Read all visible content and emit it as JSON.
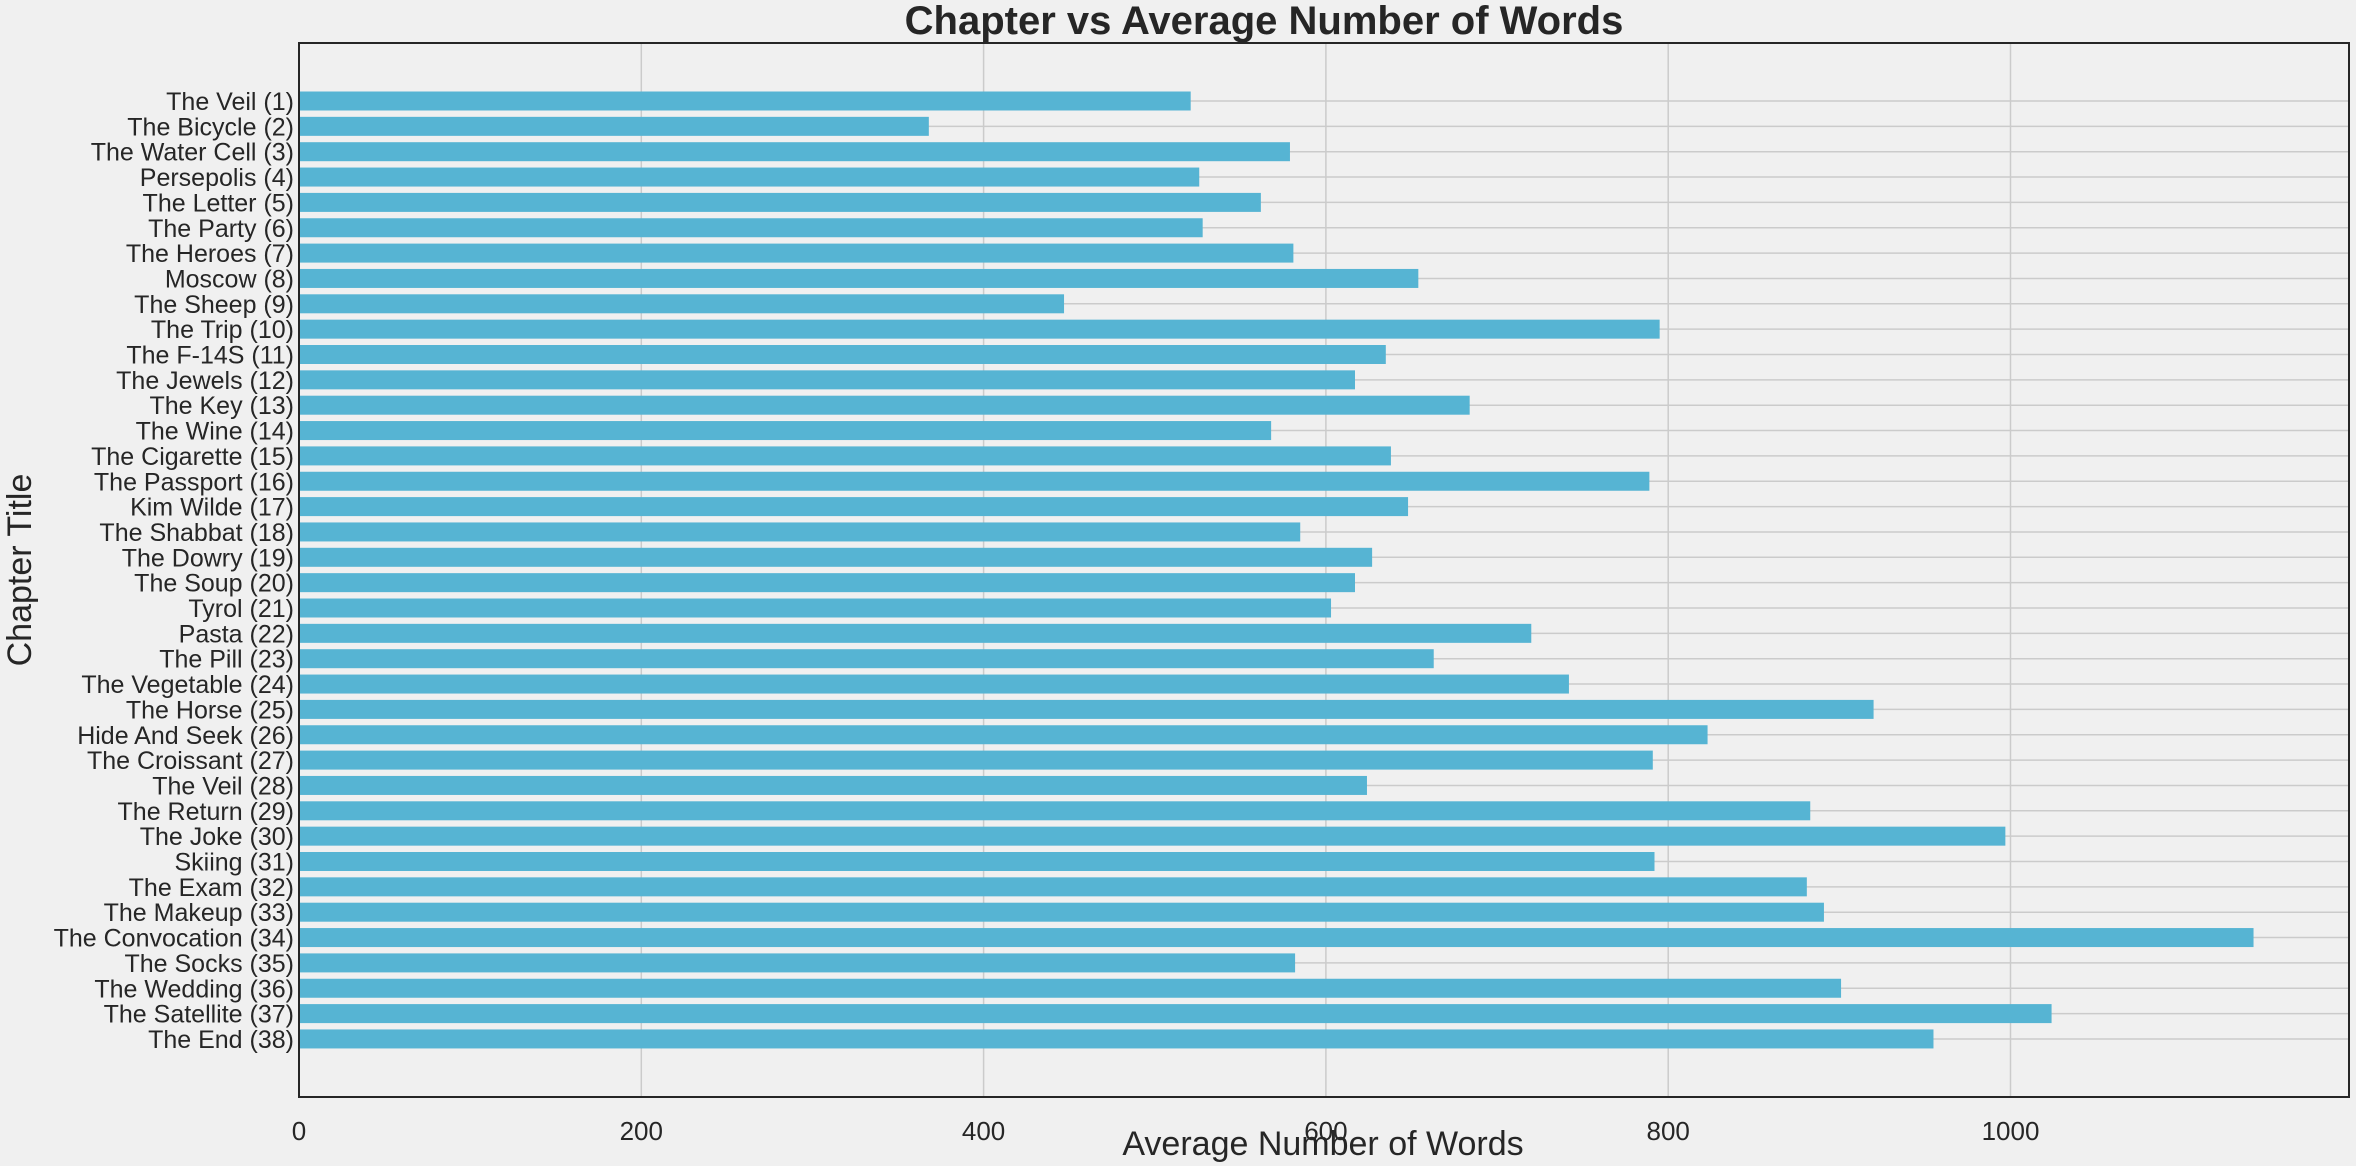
{
  "chart_data": {
    "type": "bar",
    "orientation": "horizontal",
    "title": "Chapter vs Average Number of Words",
    "xlabel": "Average Number of Words",
    "ylabel": "Chapter Title",
    "xlim": [
      0,
      1200
    ],
    "xticks": [
      0,
      200,
      400,
      600,
      800,
      1000
    ],
    "grid": true,
    "bar_color": "#56b4d3",
    "categories": [
      "The Veil (1)",
      "The Bicycle (2)",
      "The Water Cell (3)",
      "Persepolis (4)",
      "The Letter (5)",
      "The Party (6)",
      "The Heroes (7)",
      "Moscow (8)",
      "The Sheep (9)",
      "The Trip (10)",
      "The F-14S (11)",
      "The Jewels (12)",
      "The Key (13)",
      "The Wine (14)",
      "The Cigarette (15)",
      "The Passport (16)",
      "Kim Wilde (17)",
      "The Shabbat (18)",
      "The Dowry (19)",
      "The Soup (20)",
      "Tyrol (21)",
      "Pasta (22)",
      "The Pill (23)",
      "The Vegetable (24)",
      "The Horse (25)",
      "Hide And Seek (26)",
      "The Croissant (27)",
      "The Veil (28)",
      "The Return (29)",
      "The Joke (30)",
      "Skiing (31)",
      "The Exam (32)",
      "The Makeup (33)",
      "The Convocation (34)",
      "The Socks (35)",
      "The Wedding (36)",
      "The Satellite (37)",
      "The End (38)"
    ],
    "values": [
      521,
      368,
      579,
      526,
      562,
      528,
      581,
      654,
      447,
      795,
      635,
      617,
      684,
      568,
      638,
      789,
      648,
      585,
      627,
      617,
      603,
      720,
      663,
      742,
      920,
      823,
      791,
      624,
      883,
      997,
      792,
      881,
      891,
      1142,
      582,
      901,
      1024,
      955
    ]
  }
}
